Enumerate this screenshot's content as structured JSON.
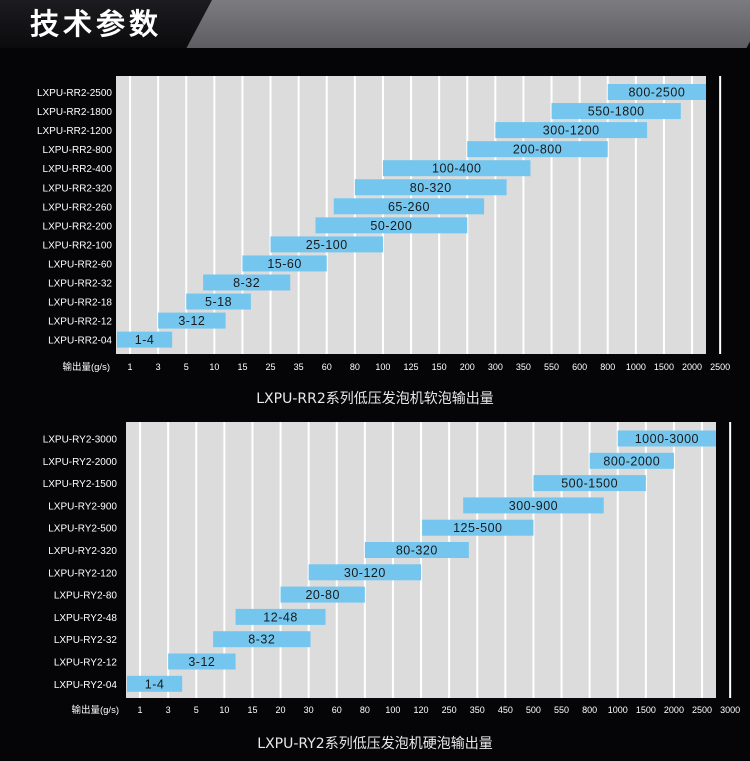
{
  "header": {
    "title": "技术参数"
  },
  "colors": {
    "panel": "#dcdcdc",
    "gridline": "#ffffff",
    "bar": "#74c6ee",
    "bar_text": "#1a1a1a",
    "label_text": "#ffffff",
    "header_accent": "#6b6b70"
  },
  "chart_data": [
    {
      "type": "bar",
      "orientation": "horizontal-range",
      "title": "LXPU-RR2系列低压发泡机软泡输出量",
      "xlabel": "输出量(g/s)",
      "x_ticks": [
        "1",
        "3",
        "5",
        "10",
        "15",
        "25",
        "35",
        "60",
        "80",
        "100",
        "125",
        "150",
        "200",
        "300",
        "350",
        "550",
        "600",
        "800",
        "1000",
        "1500",
        "2000",
        "2500"
      ],
      "categories": [
        "LXPU-RR2-2500",
        "LXPU-RR2-1800",
        "LXPU-RR2-1200",
        "LXPU-RR2-800",
        "LXPU-RR2-400",
        "LXPU-RR2-320",
        "LXPU-RR2-260",
        "LXPU-RR2-200",
        "LXPU-RR2-100",
        "LXPU-RR2-60",
        "LXPU-RR2-32",
        "LXPU-RR2-18",
        "LXPU-RR2-12",
        "LXPU-RR2-04"
      ],
      "ranges": [
        [
          800,
          2500
        ],
        [
          550,
          1800
        ],
        [
          300,
          1200
        ],
        [
          200,
          800
        ],
        [
          100,
          400
        ],
        [
          80,
          320
        ],
        [
          65,
          260
        ],
        [
          50,
          200
        ],
        [
          25,
          100
        ],
        [
          15,
          60
        ],
        [
          8,
          32
        ],
        [
          5,
          18
        ],
        [
          3,
          12
        ],
        [
          1,
          4
        ]
      ],
      "labels": [
        "800-2500",
        "550-1800",
        "300-1200",
        "200-800",
        "100-400",
        "80-320",
        "65-260",
        "50-200",
        "25-100",
        "15-60",
        "8-32",
        "5-18",
        "3-12",
        "1-4"
      ],
      "grid": true
    },
    {
      "type": "bar",
      "orientation": "horizontal-range",
      "title": "LXPU-RY2系列低压发泡机硬泡输出量",
      "xlabel": "输出量(g/s)",
      "x_ticks": [
        "1",
        "3",
        "5",
        "10",
        "15",
        "20",
        "30",
        "60",
        "80",
        "100",
        "120",
        "250",
        "350",
        "450",
        "500",
        "550",
        "800",
        "1000",
        "1500",
        "2000",
        "2500",
        "3000"
      ],
      "categories": [
        "LXPU-RY2-3000",
        "LXPU-RY2-2000",
        "LXPU-RY2-1500",
        "LXPU-RY2-900",
        "LXPU-RY2-500",
        "LXPU-RY2-320",
        "LXPU-RY2-120",
        "LXPU-RY2-80",
        "LXPU-RY2-48",
        "LXPU-RY2-32",
        "LXPU-RY2-12",
        "LXPU-RY2-04"
      ],
      "ranges": [
        [
          1000,
          3000
        ],
        [
          800,
          2000
        ],
        [
          500,
          1500
        ],
        [
          300,
          900
        ],
        [
          125,
          500
        ],
        [
          80,
          320
        ],
        [
          30,
          120
        ],
        [
          20,
          80
        ],
        [
          12,
          48
        ],
        [
          8,
          32
        ],
        [
          3,
          12
        ],
        [
          1,
          4
        ]
      ],
      "labels": [
        "1000-3000",
        "800-2000",
        "500-1500",
        "300-900",
        "125-500",
        "80-320",
        "30-120",
        "20-80",
        "12-48",
        "8-32",
        "3-12",
        "1-4"
      ],
      "grid": true
    }
  ]
}
